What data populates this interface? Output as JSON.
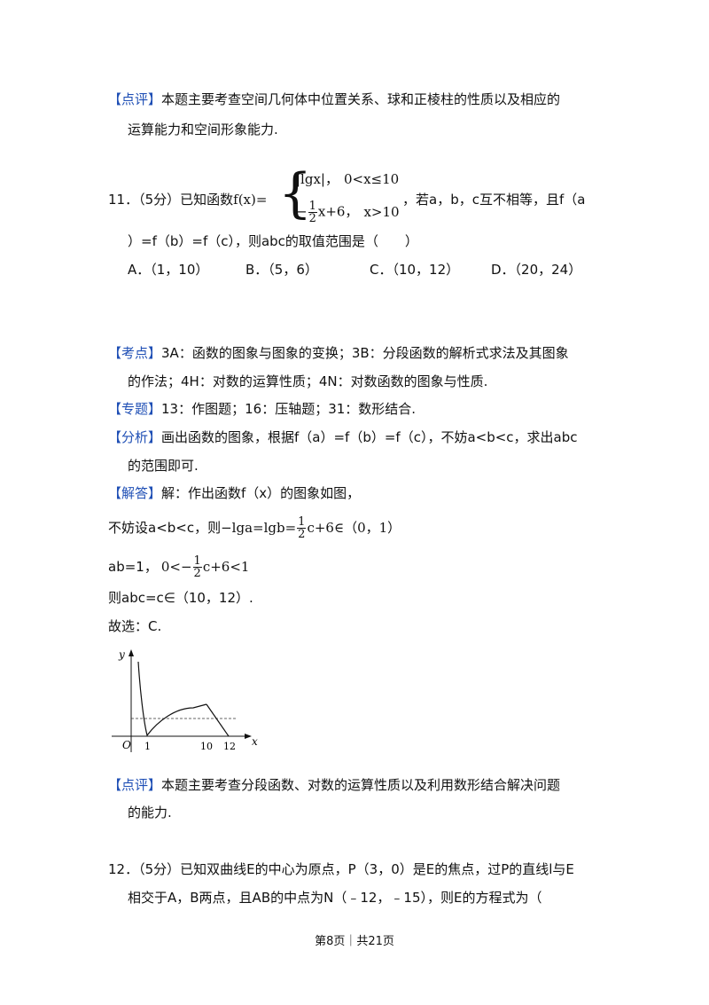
{
  "review1": {
    "tag": "【点评】",
    "line1": "本题主要考查空间几何体中位置关系、球和正棱柱的性质以及相应的",
    "line2": "运算能力和空间形象能力."
  },
  "q11": {
    "number": "11．",
    "score": "（5分）已知函数",
    "func_name": "f(x)=",
    "case1_a": "|lgx|，",
    "case1_b": "0<x≤10",
    "case2_num": "1",
    "case2_den": "2",
    "case2_lead": "−",
    "case2_rest": "x+6，",
    "case2_cond": "x>10",
    "after": "，若a，b，c互不相等，且f（a",
    "line2": "）=f（b）=f（c），则abc的取值范围是（　　）",
    "choices": [
      {
        "label": "A．（1，10）"
      },
      {
        "label": "B．（5，6）"
      },
      {
        "label": "C．（10，12）"
      },
      {
        "label": "D．（20，24）"
      }
    ]
  },
  "kaodian": {
    "tag": "【考点】",
    "line1": "3A：函数的图象与图象的变换；3B：分段函数的解析式求法及其图象",
    "line2": "的作法；4H：对数的运算性质；4N：对数函数的图象与性质."
  },
  "zhuanti": {
    "tag": "【专题】",
    "text": "13：作图题；16：压轴题；31：数形结合."
  },
  "fenxi": {
    "tag": "【分析】",
    "line1": "画出函数的图象，根据f（a）=f（b）=f（c），不妨a<b<c，求出abc",
    "line2": "的范围即可."
  },
  "jieda": {
    "tag": "【解答】",
    "line1": "解：作出函数f（x）的图象如图，",
    "line2_text": "不妨设a<b<c，则",
    "line2_math_a": "−lga=lgb=",
    "line2_num": "1",
    "line2_den": "2",
    "line2_math_b": "c+6∈（0，1）",
    "line3_text": "ab=1，",
    "line3_math_a": "0<",
    "line3_num": "1",
    "line3_den": "2",
    "line3_math_b": "c+6<1",
    "line3_minus": "−",
    "line4": "则abc=c∈（10，12）.",
    "line5": "故选：C."
  },
  "graph": {
    "y_label": "y",
    "x_label": "x",
    "origin": "O",
    "tick1": "1",
    "tick10": "10",
    "tick12": "12"
  },
  "review2": {
    "tag": "【点评】",
    "line1": "本题主要考查分段函数、对数的运算性质以及利用数形结合解决问题",
    "line2": "的能力."
  },
  "q12": {
    "line1": "12．（5分）已知双曲线E的中心为原点，P（3，0）是E的焦点，过P的直线l与E",
    "line2": "相交于A，B两点，且AB的中点为N（﹣12，﹣15），则E的方程式为（"
  },
  "footer": {
    "text": "第8页｜共21页"
  }
}
